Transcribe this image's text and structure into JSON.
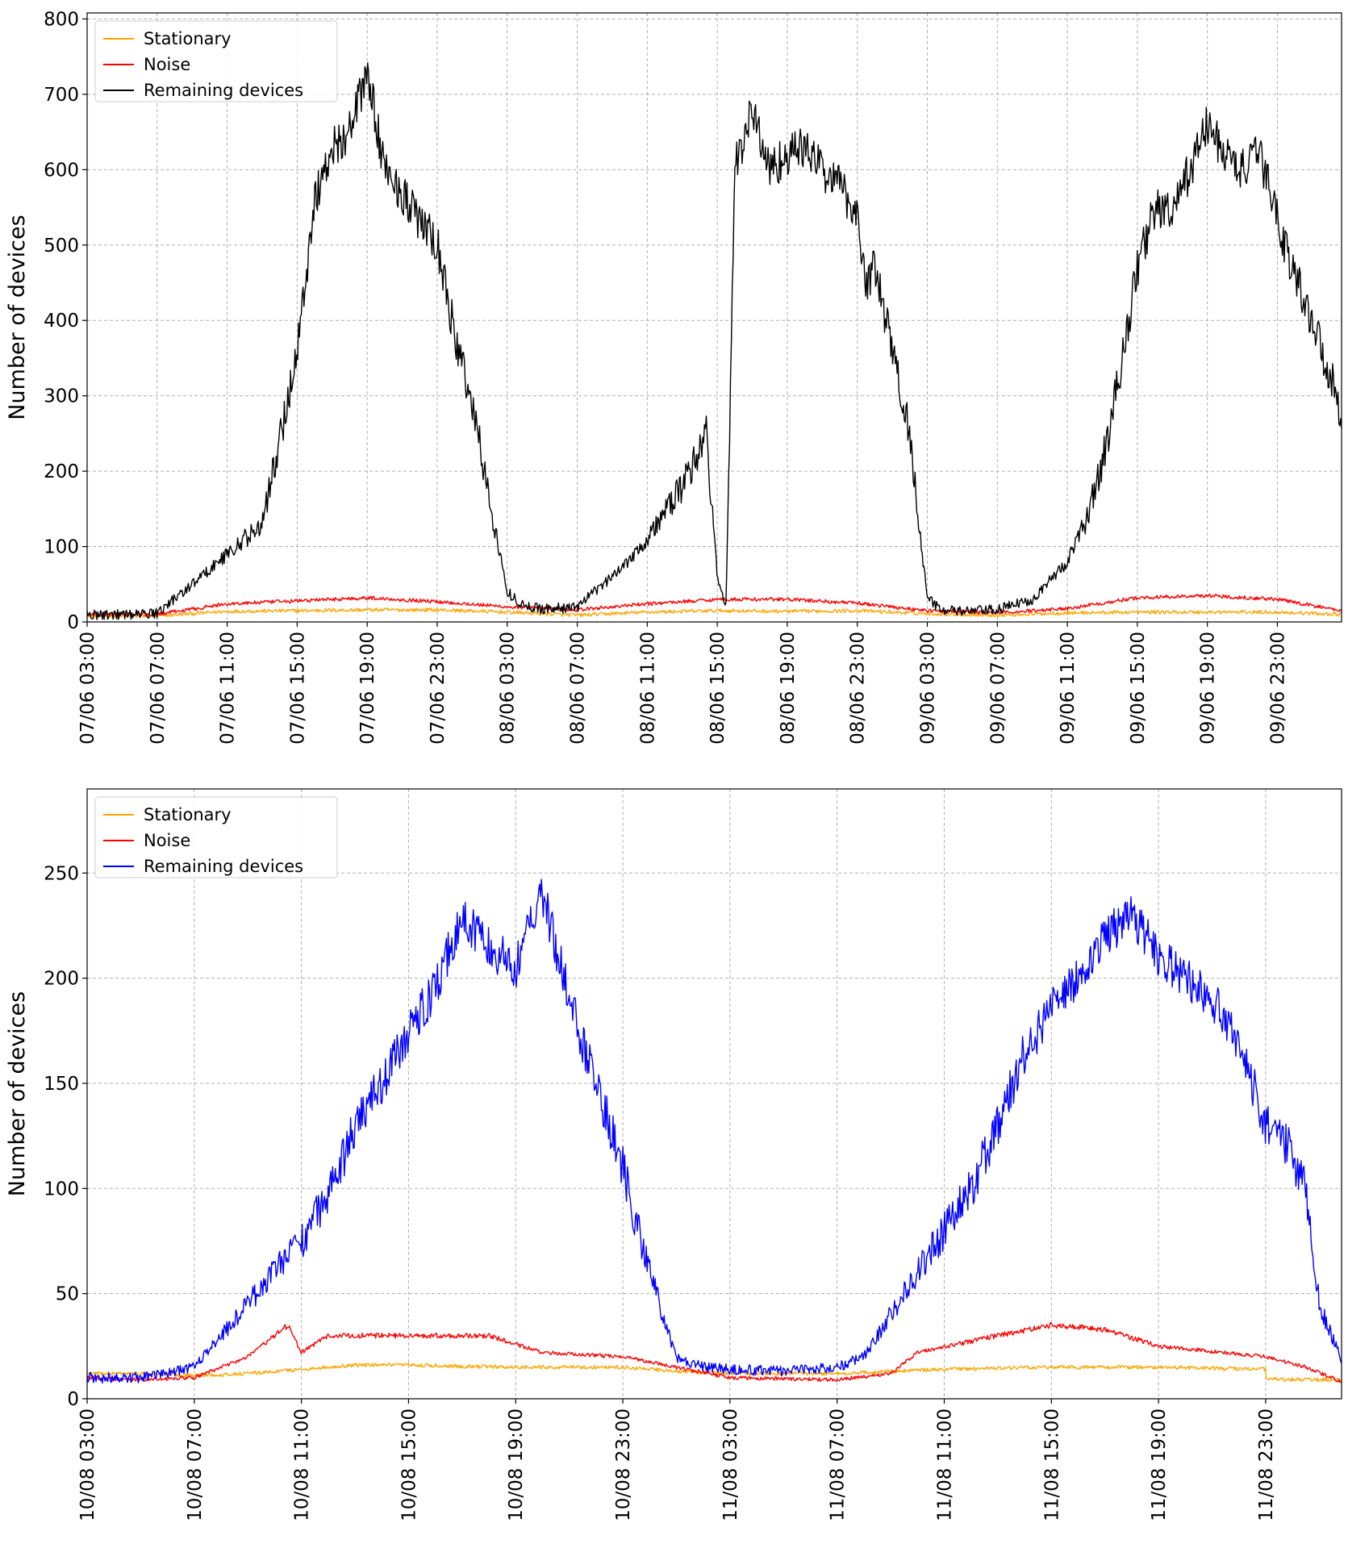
{
  "chart_data": [
    {
      "type": "line",
      "ylabel": "Number of devices",
      "ylim": [
        0,
        808
      ],
      "yticks": [
        0,
        100,
        200,
        300,
        400,
        500,
        600,
        700,
        800
      ],
      "x_range": [
        "2017-06-07T03:00",
        "2017-06-10T02:40"
      ],
      "xticks": [
        "07/06 03:00",
        "07/06 07:00",
        "07/06 11:00",
        "07/06 15:00",
        "07/06 19:00",
        "07/06 23:00",
        "08/06 03:00",
        "08/06 07:00",
        "08/06 11:00",
        "08/06 15:00",
        "08/06 19:00",
        "08/06 23:00",
        "09/06 03:00",
        "09/06 07:00",
        "09/06 11:00",
        "09/06 15:00",
        "09/06 19:00",
        "09/06 23:00"
      ],
      "grid": true,
      "legend_position": "top-left",
      "series": [
        {
          "name": "Stationary",
          "color": "#FFA500",
          "times": [
            "07/06 03:00",
            "07/06 07:00",
            "07/06 11:00",
            "07/06 15:00",
            "07/06 19:00",
            "07/06 23:00",
            "08/06 03:00",
            "08/06 07:00",
            "08/06 11:00",
            "08/06 15:00",
            "08/06 19:00",
            "08/06 23:00",
            "09/06 03:00",
            "09/06 07:00",
            "09/06 11:00",
            "09/06 15:00",
            "09/06 19:00",
            "09/06 23:00",
            "10/06 02:40"
          ],
          "values": [
            8,
            8,
            14,
            15,
            16,
            16,
            13,
            9,
            13,
            15,
            14,
            15,
            11,
            9,
            12,
            13,
            13,
            13,
            10
          ]
        },
        {
          "name": "Noise",
          "color": "#FF0000",
          "times": [
            "07/06 03:00",
            "07/06 07:00",
            "07/06 11:00",
            "07/06 15:00",
            "07/06 19:00",
            "07/06 23:00",
            "08/06 03:00",
            "08/06 07:00",
            "08/06 11:00",
            "08/06 15:00",
            "08/06 19:00",
            "08/06 23:00",
            "09/06 03:00",
            "09/06 07:00",
            "09/06 11:00",
            "09/06 15:00",
            "09/06 19:00",
            "09/06 23:00",
            "10/06 02:40"
          ],
          "values": [
            10,
            10,
            24,
            28,
            32,
            27,
            20,
            16,
            24,
            30,
            30,
            25,
            15,
            12,
            18,
            32,
            35,
            30,
            15
          ]
        },
        {
          "name": "Remaining devices",
          "color": "#000000",
          "times": [
            "07/06 03:00",
            "07/06 06:00",
            "07/06 07:00",
            "07/06 09:00",
            "07/06 11:00",
            "07/06 12:00",
            "07/06 13:00",
            "07/06 14:00",
            "07/06 15:00",
            "07/06 16:00",
            "07/06 17:00",
            "07/06 18:00",
            "07/06 19:00",
            "07/06 20:00",
            "07/06 21:00",
            "07/06 22:00",
            "07/06 23:00",
            "08/06 00:00",
            "08/06 01:00",
            "08/06 02:00",
            "08/06 03:00",
            "08/06 04:00",
            "08/06 05:00",
            "08/06 06:00",
            "08/06 07:00",
            "08/06 08:00",
            "08/06 09:00",
            "08/06 11:00",
            "08/06 13:00",
            "08/06 14:00",
            "08/06 14:20",
            "08/06 15:00",
            "08/06 15:30",
            "08/06 16:00",
            "08/06 17:00",
            "08/06 18:00",
            "08/06 19:00",
            "08/06 20:00",
            "08/06 21:00",
            "08/06 22:00",
            "08/06 23:00",
            "08/06 23:30",
            "09/06 00:00",
            "09/06 01:00",
            "09/06 02:00",
            "09/06 03:00",
            "09/06 04:00",
            "09/06 05:00",
            "09/06 07:00",
            "09/06 09:00",
            "09/06 11:00",
            "09/06 12:00",
            "09/06 13:00",
            "09/06 14:00",
            "09/06 15:00",
            "09/06 16:00",
            "09/06 17:00",
            "09/06 18:00",
            "09/06 19:00",
            "09/06 20:00",
            "09/06 21:00",
            "09/06 22:00",
            "09/06 23:00",
            "09/06 23:40",
            "10/06 01:00",
            "10/06 02:40"
          ],
          "values": [
            10,
            10,
            12,
            50,
            90,
            110,
            130,
            240,
            360,
            560,
            630,
            650,
            730,
            600,
            570,
            530,
            500,
            380,
            290,
            160,
            40,
            20,
            18,
            18,
            20,
            40,
            60,
            110,
            180,
            230,
            260,
            60,
            20,
            600,
            680,
            600,
            620,
            630,
            600,
            580,
            540,
            450,
            470,
            360,
            250,
            30,
            15,
            14,
            16,
            30,
            80,
            130,
            210,
            330,
            470,
            550,
            540,
            600,
            660,
            620,
            600,
            620,
            540,
            480,
            400,
            280
          ]
        }
      ]
    },
    {
      "type": "line",
      "ylabel": "Number of devices",
      "ylim": [
        0,
        290
      ],
      "yticks": [
        0,
        50,
        100,
        150,
        200,
        250
      ],
      "x_range": [
        "2017-08-10T03:00",
        "2017-08-12T01:50"
      ],
      "xticks": [
        "10/08 03:00",
        "10/08 07:00",
        "10/08 11:00",
        "10/08 15:00",
        "10/08 19:00",
        "10/08 23:00",
        "11/08 03:00",
        "11/08 07:00",
        "11/08 11:00",
        "11/08 15:00",
        "11/08 19:00",
        "11/08 23:00"
      ],
      "grid": true,
      "legend_position": "top-left",
      "series": [
        {
          "name": "Stationary",
          "color": "#FFA500",
          "times": [
            "10/08 03:00",
            "10/08 05:00",
            "10/08 07:00",
            "10/08 09:00",
            "10/08 11:00",
            "10/08 13:00",
            "10/08 15:00",
            "10/08 19:00",
            "10/08 23:00",
            "11/08 01:00",
            "11/08 03:00",
            "11/08 07:00",
            "11/08 09:00",
            "11/08 11:00",
            "11/08 15:00",
            "11/08 19:00",
            "11/08 23:00",
            "11/08 01:00",
            "12/08 01:50"
          ],
          "values": [
            12,
            12,
            11,
            12,
            14,
            16,
            16,
            15,
            15,
            13,
            12,
            12,
            13,
            14,
            15,
            15,
            14,
            12,
            9
          ]
        },
        {
          "name": "Noise",
          "color": "#FF0000",
          "times": [
            "10/08 03:00",
            "10/08 05:00",
            "10/08 07:00",
            "10/08 09:00",
            "10/08 10:30",
            "10/08 11:00",
            "10/08 12:00",
            "10/08 15:00",
            "10/08 18:00",
            "10/08 20:00",
            "10/08 23:00",
            "11/08 01:00",
            "11/08 03:00",
            "11/08 07:00",
            "11/08 09:00",
            "11/08 10:00",
            "11/08 13:00",
            "11/08 15:00",
            "11/08 17:00",
            "11/08 19:00",
            "11/08 23:00",
            "12/08 00:30",
            "12/08 01:50"
          ],
          "values": [
            10,
            9,
            10,
            20,
            35,
            22,
            30,
            30,
            30,
            22,
            20,
            15,
            10,
            9,
            12,
            22,
            30,
            35,
            33,
            25,
            20,
            15,
            8
          ]
        },
        {
          "name": "Remaining devices",
          "color": "#0000FF",
          "times": [
            "10/08 03:00",
            "10/08 05:00",
            "10/08 07:00",
            "10/08 09:00",
            "10/08 11:00",
            "10/08 12:00",
            "10/08 13:00",
            "10/08 14:00",
            "10/08 15:00",
            "10/08 16:00",
            "10/08 17:00",
            "10/08 18:00",
            "10/08 19:00",
            "10/08 20:00",
            "10/08 21:00",
            "10/08 22:00",
            "10/08 23:00",
            "11/08 00:00",
            "11/08 01:00",
            "11/08 02:00",
            "11/08 03:00",
            "11/08 05:00",
            "11/08 07:00",
            "11/08 08:00",
            "11/08 09:00",
            "11/08 10:00",
            "11/08 11:00",
            "11/08 12:00",
            "11/08 13:00",
            "11/08 14:00",
            "11/08 15:00",
            "11/08 16:00",
            "11/08 17:00",
            "11/08 18:00",
            "11/08 19:00",
            "11/08 20:00",
            "11/08 21:00",
            "11/08 22:00",
            "11/08 23:00",
            "11/08 23:50",
            "12/08 00:30",
            "12/08 01:00",
            "12/08 01:50"
          ],
          "values": [
            10,
            10,
            15,
            45,
            75,
            95,
            130,
            150,
            175,
            195,
            230,
            215,
            205,
            240,
            190,
            150,
            110,
            60,
            20,
            15,
            14,
            13,
            15,
            20,
            40,
            60,
            80,
            100,
            130,
            165,
            185,
            200,
            220,
            230,
            210,
            200,
            190,
            170,
            130,
            120,
            100,
            45,
            18
          ]
        }
      ]
    }
  ]
}
